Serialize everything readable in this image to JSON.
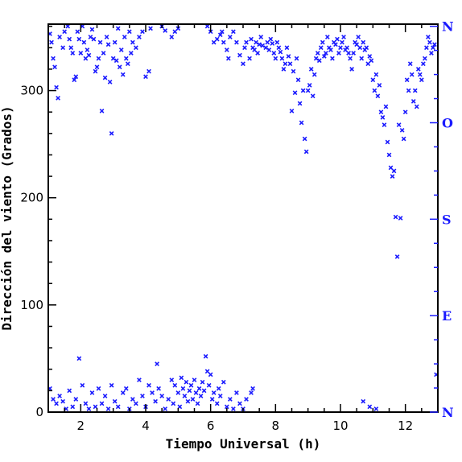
{
  "colors": {
    "points": "#1a1aff",
    "axis": "#000000",
    "compass": "#1a1aff"
  },
  "chart_data": {
    "type": "scatter",
    "title": "",
    "xlabel": "Tiempo Universal (h)",
    "ylabel": "Dirección del viento (Grados)",
    "xlim": [
      1,
      13
    ],
    "ylim": [
      0,
      362
    ],
    "x_ticks": [
      2,
      4,
      6,
      8,
      10,
      12
    ],
    "y_ticks": [
      0,
      100,
      200,
      300
    ],
    "right_axis_labels": [
      {
        "value": 0,
        "label": "N"
      },
      {
        "value": 90,
        "label": "E"
      },
      {
        "value": 180,
        "label": "S"
      },
      {
        "value": 270,
        "label": "O"
      },
      {
        "value": 360,
        "label": "N"
      }
    ],
    "marker": "x",
    "grid": false,
    "series": [
      {
        "points": [
          [
            1.05,
            353
          ],
          [
            1.1,
            345
          ],
          [
            1.15,
            330
          ],
          [
            1.2,
            322
          ],
          [
            1.25,
            303
          ],
          [
            1.3,
            293
          ],
          [
            1.35,
            350
          ],
          [
            1.45,
            340
          ],
          [
            1.5,
            355
          ],
          [
            1.6,
            360
          ],
          [
            1.65,
            348
          ],
          [
            1.7,
            340
          ],
          [
            1.75,
            335
          ],
          [
            1.8,
            310
          ],
          [
            1.85,
            313
          ],
          [
            1.9,
            355
          ],
          [
            1.95,
            348
          ],
          [
            2.0,
            335
          ],
          [
            2.05,
            360
          ],
          [
            2.1,
            345
          ],
          [
            2.15,
            330
          ],
          [
            2.2,
            338
          ],
          [
            2.25,
            333
          ],
          [
            2.3,
            350
          ],
          [
            2.35,
            357
          ],
          [
            2.4,
            348
          ],
          [
            2.45,
            318
          ],
          [
            2.5,
            322
          ],
          [
            2.55,
            330
          ],
          [
            2.6,
            345
          ],
          [
            2.65,
            281
          ],
          [
            2.7,
            335
          ],
          [
            2.75,
            312
          ],
          [
            2.8,
            350
          ],
          [
            2.85,
            343
          ],
          [
            2.9,
            308
          ],
          [
            2.95,
            260
          ],
          [
            3.0,
            330
          ],
          [
            3.05,
            345
          ],
          [
            3.1,
            328
          ],
          [
            3.15,
            358
          ],
          [
            3.2,
            322
          ],
          [
            3.25,
            338
          ],
          [
            3.3,
            315
          ],
          [
            3.35,
            350
          ],
          [
            3.4,
            330
          ],
          [
            3.45,
            325
          ],
          [
            3.5,
            355
          ],
          [
            3.55,
            335
          ],
          [
            3.6,
            345
          ],
          [
            3.7,
            340
          ],
          [
            3.8,
            350
          ],
          [
            3.9,
            355
          ],
          [
            4.0,
            313
          ],
          [
            4.1,
            318
          ],
          [
            4.15,
            358
          ],
          [
            4.5,
            360
          ],
          [
            4.6,
            356
          ],
          [
            4.8,
            350
          ],
          [
            4.9,
            355
          ],
          [
            5.0,
            358
          ],
          [
            5.9,
            360
          ],
          [
            6.0,
            355
          ],
          [
            6.1,
            345
          ],
          [
            6.2,
            348
          ],
          [
            6.3,
            352
          ],
          [
            6.35,
            355
          ],
          [
            6.4,
            345
          ],
          [
            6.5,
            338
          ],
          [
            6.55,
            330
          ],
          [
            6.6,
            350
          ],
          [
            6.7,
            355
          ],
          [
            6.8,
            345
          ],
          [
            6.9,
            333
          ],
          [
            7.0,
            325
          ],
          [
            7.05,
            340
          ],
          [
            7.1,
            345
          ],
          [
            7.2,
            330
          ],
          [
            7.25,
            348
          ],
          [
            7.3,
            340
          ],
          [
            7.35,
            338
          ],
          [
            7.4,
            345
          ],
          [
            7.45,
            335
          ],
          [
            7.5,
            343
          ],
          [
            7.55,
            350
          ],
          [
            7.6,
            342
          ],
          [
            7.7,
            340
          ],
          [
            7.75,
            345
          ],
          [
            7.8,
            338
          ],
          [
            7.85,
            348
          ],
          [
            7.9,
            344
          ],
          [
            7.95,
            335
          ],
          [
            8.0,
            330
          ],
          [
            8.05,
            345
          ],
          [
            8.1,
            340
          ],
          [
            8.15,
            336
          ],
          [
            8.2,
            330
          ],
          [
            8.25,
            320
          ],
          [
            8.3,
            325
          ],
          [
            8.35,
            340
          ],
          [
            8.4,
            332
          ],
          [
            8.45,
            325
          ],
          [
            8.5,
            281
          ],
          [
            8.55,
            318
          ],
          [
            8.6,
            298
          ],
          [
            8.65,
            330
          ],
          [
            8.7,
            310
          ],
          [
            8.75,
            288
          ],
          [
            8.8,
            270
          ],
          [
            8.85,
            300
          ],
          [
            8.9,
            255
          ],
          [
            8.95,
            243
          ],
          [
            9.0,
            300
          ],
          [
            9.05,
            305
          ],
          [
            9.1,
            320
          ],
          [
            9.15,
            295
          ],
          [
            9.2,
            315
          ],
          [
            9.25,
            330
          ],
          [
            9.3,
            335
          ],
          [
            9.35,
            328
          ],
          [
            9.4,
            340
          ],
          [
            9.45,
            345
          ],
          [
            9.5,
            332
          ],
          [
            9.55,
            335
          ],
          [
            9.6,
            350
          ],
          [
            9.65,
            340
          ],
          [
            9.7,
            338
          ],
          [
            9.75,
            330
          ],
          [
            9.8,
            345
          ],
          [
            9.85,
            343
          ],
          [
            9.9,
            348
          ],
          [
            9.95,
            335
          ],
          [
            10.0,
            340
          ],
          [
            10.05,
            345
          ],
          [
            10.1,
            350
          ],
          [
            10.15,
            338
          ],
          [
            10.2,
            340
          ],
          [
            10.25,
            335
          ],
          [
            10.3,
            330
          ],
          [
            10.35,
            320
          ],
          [
            10.4,
            335
          ],
          [
            10.45,
            345
          ],
          [
            10.5,
            343
          ],
          [
            10.55,
            350
          ],
          [
            10.6,
            340
          ],
          [
            10.65,
            330
          ],
          [
            10.7,
            345
          ],
          [
            10.75,
            338
          ],
          [
            10.8,
            340
          ],
          [
            10.85,
            325
          ],
          [
            10.9,
            332
          ],
          [
            10.95,
            328
          ],
          [
            11.0,
            310
          ],
          [
            11.05,
            300
          ],
          [
            11.1,
            315
          ],
          [
            11.15,
            295
          ],
          [
            11.2,
            305
          ],
          [
            11.25,
            280
          ],
          [
            11.3,
            275
          ],
          [
            11.35,
            268
          ],
          [
            11.4,
            285
          ],
          [
            11.45,
            252
          ],
          [
            11.5,
            240
          ],
          [
            11.55,
            228
          ],
          [
            11.6,
            220
          ],
          [
            11.65,
            225
          ],
          [
            11.7,
            182
          ],
          [
            11.75,
            145
          ],
          [
            11.8,
            268
          ],
          [
            11.85,
            181
          ],
          [
            11.9,
            263
          ],
          [
            11.95,
            255
          ],
          [
            12.0,
            280
          ],
          [
            12.05,
            310
          ],
          [
            12.1,
            300
          ],
          [
            12.15,
            325
          ],
          [
            12.2,
            315
          ],
          [
            12.25,
            290
          ],
          [
            12.3,
            300
          ],
          [
            12.35,
            285
          ],
          [
            12.4,
            320
          ],
          [
            12.45,
            315
          ],
          [
            12.5,
            310
          ],
          [
            12.55,
            325
          ],
          [
            12.6,
            330
          ],
          [
            12.65,
            340
          ],
          [
            12.7,
            350
          ],
          [
            12.75,
            345
          ],
          [
            12.8,
            335
          ],
          [
            12.85,
            340
          ],
          [
            12.9,
            343
          ],
          [
            12.95,
            35
          ],
          [
            1.05,
            22
          ],
          [
            1.15,
            12
          ],
          [
            1.25,
            8
          ],
          [
            1.35,
            15
          ],
          [
            1.45,
            10
          ],
          [
            1.55,
            3
          ],
          [
            1.65,
            20
          ],
          [
            1.75,
            5
          ],
          [
            1.85,
            12
          ],
          [
            1.95,
            50
          ],
          [
            2.05,
            25
          ],
          [
            2.15,
            8
          ],
          [
            2.25,
            3
          ],
          [
            2.35,
            18
          ],
          [
            2.45,
            5
          ],
          [
            2.55,
            22
          ],
          [
            2.65,
            8
          ],
          [
            2.75,
            15
          ],
          [
            2.85,
            3
          ],
          [
            2.95,
            25
          ],
          [
            3.05,
            10
          ],
          [
            3.15,
            5
          ],
          [
            3.3,
            18
          ],
          [
            3.4,
            22
          ],
          [
            3.5,
            3
          ],
          [
            3.6,
            12
          ],
          [
            3.7,
            8
          ],
          [
            3.8,
            30
          ],
          [
            3.9,
            15
          ],
          [
            4.0,
            5
          ],
          [
            4.1,
            25
          ],
          [
            4.2,
            18
          ],
          [
            4.3,
            10
          ],
          [
            4.35,
            45
          ],
          [
            4.4,
            22
          ],
          [
            4.5,
            15
          ],
          [
            4.6,
            3
          ],
          [
            4.7,
            12
          ],
          [
            4.8,
            30
          ],
          [
            4.85,
            8
          ],
          [
            4.9,
            25
          ],
          [
            5.0,
            18
          ],
          [
            5.05,
            5
          ],
          [
            5.1,
            32
          ],
          [
            5.15,
            22
          ],
          [
            5.2,
            15
          ],
          [
            5.25,
            28
          ],
          [
            5.3,
            10
          ],
          [
            5.35,
            20
          ],
          [
            5.4,
            25
          ],
          [
            5.45,
            12
          ],
          [
            5.5,
            30
          ],
          [
            5.55,
            18
          ],
          [
            5.6,
            8
          ],
          [
            5.65,
            22
          ],
          [
            5.7,
            15
          ],
          [
            5.75,
            28
          ],
          [
            5.8,
            20
          ],
          [
            5.85,
            52
          ],
          [
            5.9,
            38
          ],
          [
            5.95,
            25
          ],
          [
            6.0,
            35
          ],
          [
            6.05,
            12
          ],
          [
            6.1,
            18
          ],
          [
            6.2,
            8
          ],
          [
            6.25,
            22
          ],
          [
            6.3,
            15
          ],
          [
            6.4,
            28
          ],
          [
            6.5,
            5
          ],
          [
            6.6,
            12
          ],
          [
            6.7,
            3
          ],
          [
            6.8,
            18
          ],
          [
            6.9,
            8
          ],
          [
            7.0,
            3
          ],
          [
            7.1,
            12
          ],
          [
            7.25,
            18
          ],
          [
            7.3,
            22
          ],
          [
            10.7,
            10
          ],
          [
            10.9,
            5
          ],
          [
            11.1,
            3
          ]
        ]
      }
    ]
  }
}
